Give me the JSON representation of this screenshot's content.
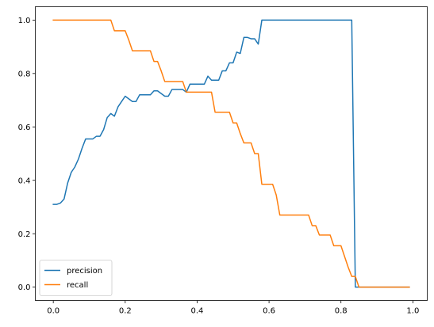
{
  "chart_data": {
    "type": "line",
    "title": "",
    "xlabel": "",
    "ylabel": "",
    "xlim": [
      -0.05,
      1.04
    ],
    "ylim": [
      -0.05,
      1.05
    ],
    "xticks": [
      0.0,
      0.2,
      0.4,
      0.6,
      0.8,
      1.0
    ],
    "xtick_labels": [
      "0.0",
      "0.2",
      "0.4",
      "0.6",
      "0.8",
      "1.0"
    ],
    "yticks": [
      0.0,
      0.2,
      0.4,
      0.6,
      0.8,
      1.0
    ],
    "ytick_labels": [
      "0.0",
      "0.2",
      "0.4",
      "0.6",
      "0.8",
      "1.0"
    ],
    "grid": false,
    "legend": {
      "placement": "lower-left",
      "entries": [
        "precision",
        "recall"
      ]
    },
    "series": [
      {
        "name": "precision",
        "color": "#1f77b4",
        "x": [
          0.0,
          0.01,
          0.02,
          0.03,
          0.04,
          0.05,
          0.06,
          0.07,
          0.08,
          0.09,
          0.1,
          0.11,
          0.12,
          0.13,
          0.14,
          0.15,
          0.16,
          0.17,
          0.18,
          0.19,
          0.2,
          0.21,
          0.22,
          0.23,
          0.24,
          0.25,
          0.26,
          0.27,
          0.28,
          0.29,
          0.3,
          0.31,
          0.32,
          0.33,
          0.34,
          0.35,
          0.36,
          0.37,
          0.38,
          0.39,
          0.4,
          0.41,
          0.42,
          0.43,
          0.44,
          0.45,
          0.46,
          0.47,
          0.48,
          0.49,
          0.5,
          0.51,
          0.52,
          0.53,
          0.54,
          0.55,
          0.56,
          0.57,
          0.58,
          0.59,
          0.6,
          0.65,
          0.7,
          0.75,
          0.8,
          0.83,
          0.84,
          0.85,
          0.9,
          0.95,
          0.99
        ],
        "y": [
          0.31,
          0.31,
          0.315,
          0.33,
          0.39,
          0.43,
          0.45,
          0.48,
          0.52,
          0.555,
          0.555,
          0.555,
          0.565,
          0.565,
          0.59,
          0.635,
          0.65,
          0.64,
          0.675,
          0.695,
          0.715,
          0.705,
          0.695,
          0.695,
          0.72,
          0.72,
          0.72,
          0.72,
          0.735,
          0.735,
          0.725,
          0.715,
          0.715,
          0.74,
          0.74,
          0.74,
          0.74,
          0.73,
          0.76,
          0.76,
          0.76,
          0.76,
          0.76,
          0.79,
          0.775,
          0.775,
          0.775,
          0.81,
          0.81,
          0.84,
          0.84,
          0.88,
          0.875,
          0.935,
          0.935,
          0.93,
          0.93,
          0.91,
          1.0,
          1.0,
          1.0,
          1.0,
          1.0,
          1.0,
          1.0,
          1.0,
          0.0,
          0.0,
          0.0,
          0.0,
          0.0
        ]
      },
      {
        "name": "recall",
        "color": "#ff7f0e",
        "x": [
          0.0,
          0.02,
          0.05,
          0.1,
          0.15,
          0.16,
          0.17,
          0.18,
          0.19,
          0.2,
          0.21,
          0.22,
          0.23,
          0.24,
          0.25,
          0.26,
          0.27,
          0.28,
          0.29,
          0.3,
          0.31,
          0.32,
          0.33,
          0.34,
          0.35,
          0.36,
          0.37,
          0.38,
          0.39,
          0.4,
          0.41,
          0.42,
          0.43,
          0.44,
          0.45,
          0.46,
          0.47,
          0.48,
          0.49,
          0.5,
          0.51,
          0.52,
          0.53,
          0.54,
          0.55,
          0.56,
          0.57,
          0.58,
          0.59,
          0.6,
          0.61,
          0.62,
          0.63,
          0.65,
          0.7,
          0.71,
          0.72,
          0.73,
          0.74,
          0.75,
          0.76,
          0.77,
          0.78,
          0.79,
          0.8,
          0.81,
          0.82,
          0.83,
          0.84,
          0.85,
          0.9,
          0.95,
          0.99
        ],
        "y": [
          1.0,
          1.0,
          1.0,
          1.0,
          1.0,
          1.0,
          0.96,
          0.96,
          0.96,
          0.96,
          0.925,
          0.885,
          0.885,
          0.885,
          0.885,
          0.885,
          0.885,
          0.845,
          0.845,
          0.81,
          0.77,
          0.77,
          0.77,
          0.77,
          0.77,
          0.77,
          0.73,
          0.73,
          0.73,
          0.73,
          0.73,
          0.73,
          0.73,
          0.73,
          0.655,
          0.655,
          0.655,
          0.655,
          0.655,
          0.615,
          0.615,
          0.575,
          0.54,
          0.54,
          0.54,
          0.5,
          0.5,
          0.385,
          0.385,
          0.385,
          0.385,
          0.345,
          0.27,
          0.27,
          0.27,
          0.27,
          0.23,
          0.23,
          0.195,
          0.195,
          0.195,
          0.195,
          0.155,
          0.155,
          0.155,
          0.115,
          0.075,
          0.04,
          0.04,
          0.0,
          0.0,
          0.0,
          0.0
        ]
      }
    ]
  }
}
